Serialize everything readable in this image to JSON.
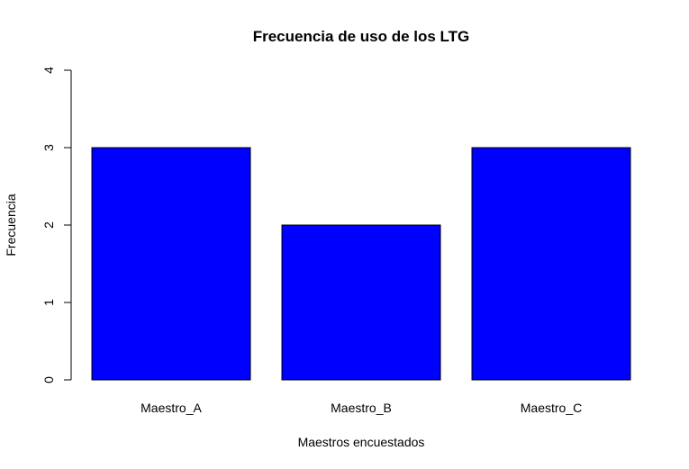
{
  "chart_data": {
    "type": "bar",
    "title": "Frecuencia de uso de los LTG",
    "xlabel": "Maestros encuestados",
    "ylabel": "Frecuencia",
    "categories": [
      "Maestro_A",
      "Maestro_B",
      "Maestro_C"
    ],
    "values": [
      3,
      2,
      3
    ],
    "ylim": [
      0,
      4
    ],
    "yticks": [
      "0",
      "1",
      "2",
      "3",
      "4"
    ],
    "bar_color": "#0000ff",
    "grid": false,
    "legend": "none"
  }
}
